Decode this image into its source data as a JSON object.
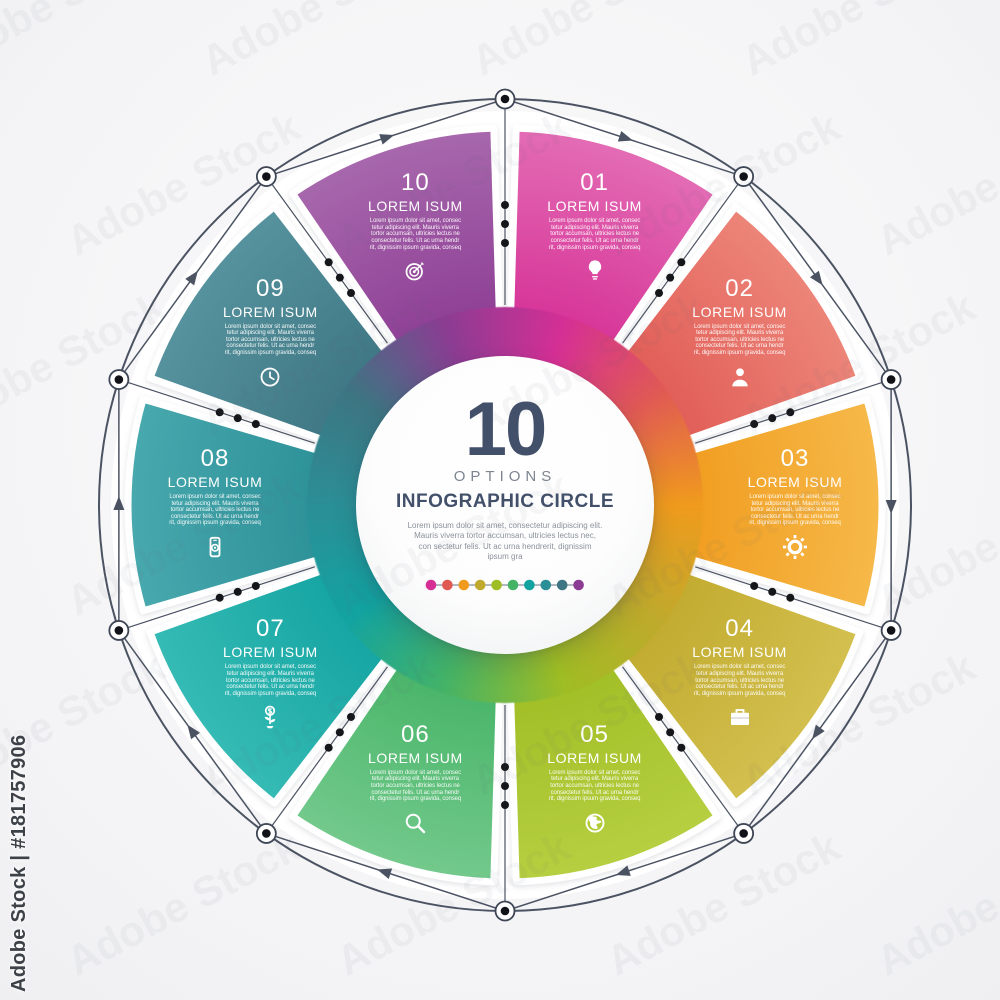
{
  "watermark": {
    "pattern_text": "Adobe Stock",
    "credit_text": "Adobe Stock | #181757906"
  },
  "center": {
    "number": "10",
    "subtitle": "OPTIONS",
    "title": "INFOGRAPHIC CIRCLE",
    "description": "Lorem ipsum dolor sit amet, consectetur adipiscing elit. Mauris viverra tortor accumsan, ultricies lectus nec, con sectetur felis. Ut ac urna hendrerit, dignissim ipsum gra"
  },
  "segment_body_text": "Lorem ipsum dolor sit amet, consec tetur adipiscing elit. Mauris viverra tortor accumsan, ultricies lectus ne consectetur felis. Ut ac urna hendr rit, dignissim ipsum gravida, conseq",
  "segments": [
    {
      "number": "01",
      "title": "LOREM ISUM",
      "icon": "lightbulb-icon",
      "color_inner": "#d52f95",
      "color_outer": "#e36bb4"
    },
    {
      "number": "02",
      "title": "LOREM ISUM",
      "icon": "person-icon",
      "color_inner": "#e05a54",
      "color_outer": "#ec8478"
    },
    {
      "number": "03",
      "title": "LOREM ISUM",
      "icon": "gear-icon",
      "color_inner": "#f09b1d",
      "color_outer": "#f6b848"
    },
    {
      "number": "04",
      "title": "LOREM ISUM",
      "icon": "briefcase-icon",
      "color_inner": "#c0a92c",
      "color_outer": "#d2bf4e"
    },
    {
      "number": "05",
      "title": "LOREM ISUM",
      "icon": "globe-icon",
      "color_inner": "#9fbd24",
      "color_outer": "#b5cf40"
    },
    {
      "number": "06",
      "title": "LOREM ISUM",
      "icon": "magnifier-icon",
      "color_inner": "#45b366",
      "color_outer": "#72c98b"
    },
    {
      "number": "07",
      "title": "LOREM ISUM",
      "icon": "money-plant-icon",
      "color_inner": "#12a3a1",
      "color_outer": "#35bab4"
    },
    {
      "number": "08",
      "title": "LOREM ISUM",
      "icon": "smartphone-icon",
      "color_inner": "#2b8f97",
      "color_outer": "#47a8ad"
    },
    {
      "number": "09",
      "title": "LOREM ISUM",
      "icon": "clock-icon",
      "color_inner": "#3d7582",
      "color_outer": "#55929d"
    },
    {
      "number": "10",
      "title": "LOREM ISUM",
      "icon": "target-icon",
      "color_inner": "#8c3c93",
      "color_outer": "#a767ac"
    }
  ],
  "line_colors": {
    "outline": "#4b5363",
    "node_fill": "#111318",
    "dot_fill": "#15161a"
  }
}
